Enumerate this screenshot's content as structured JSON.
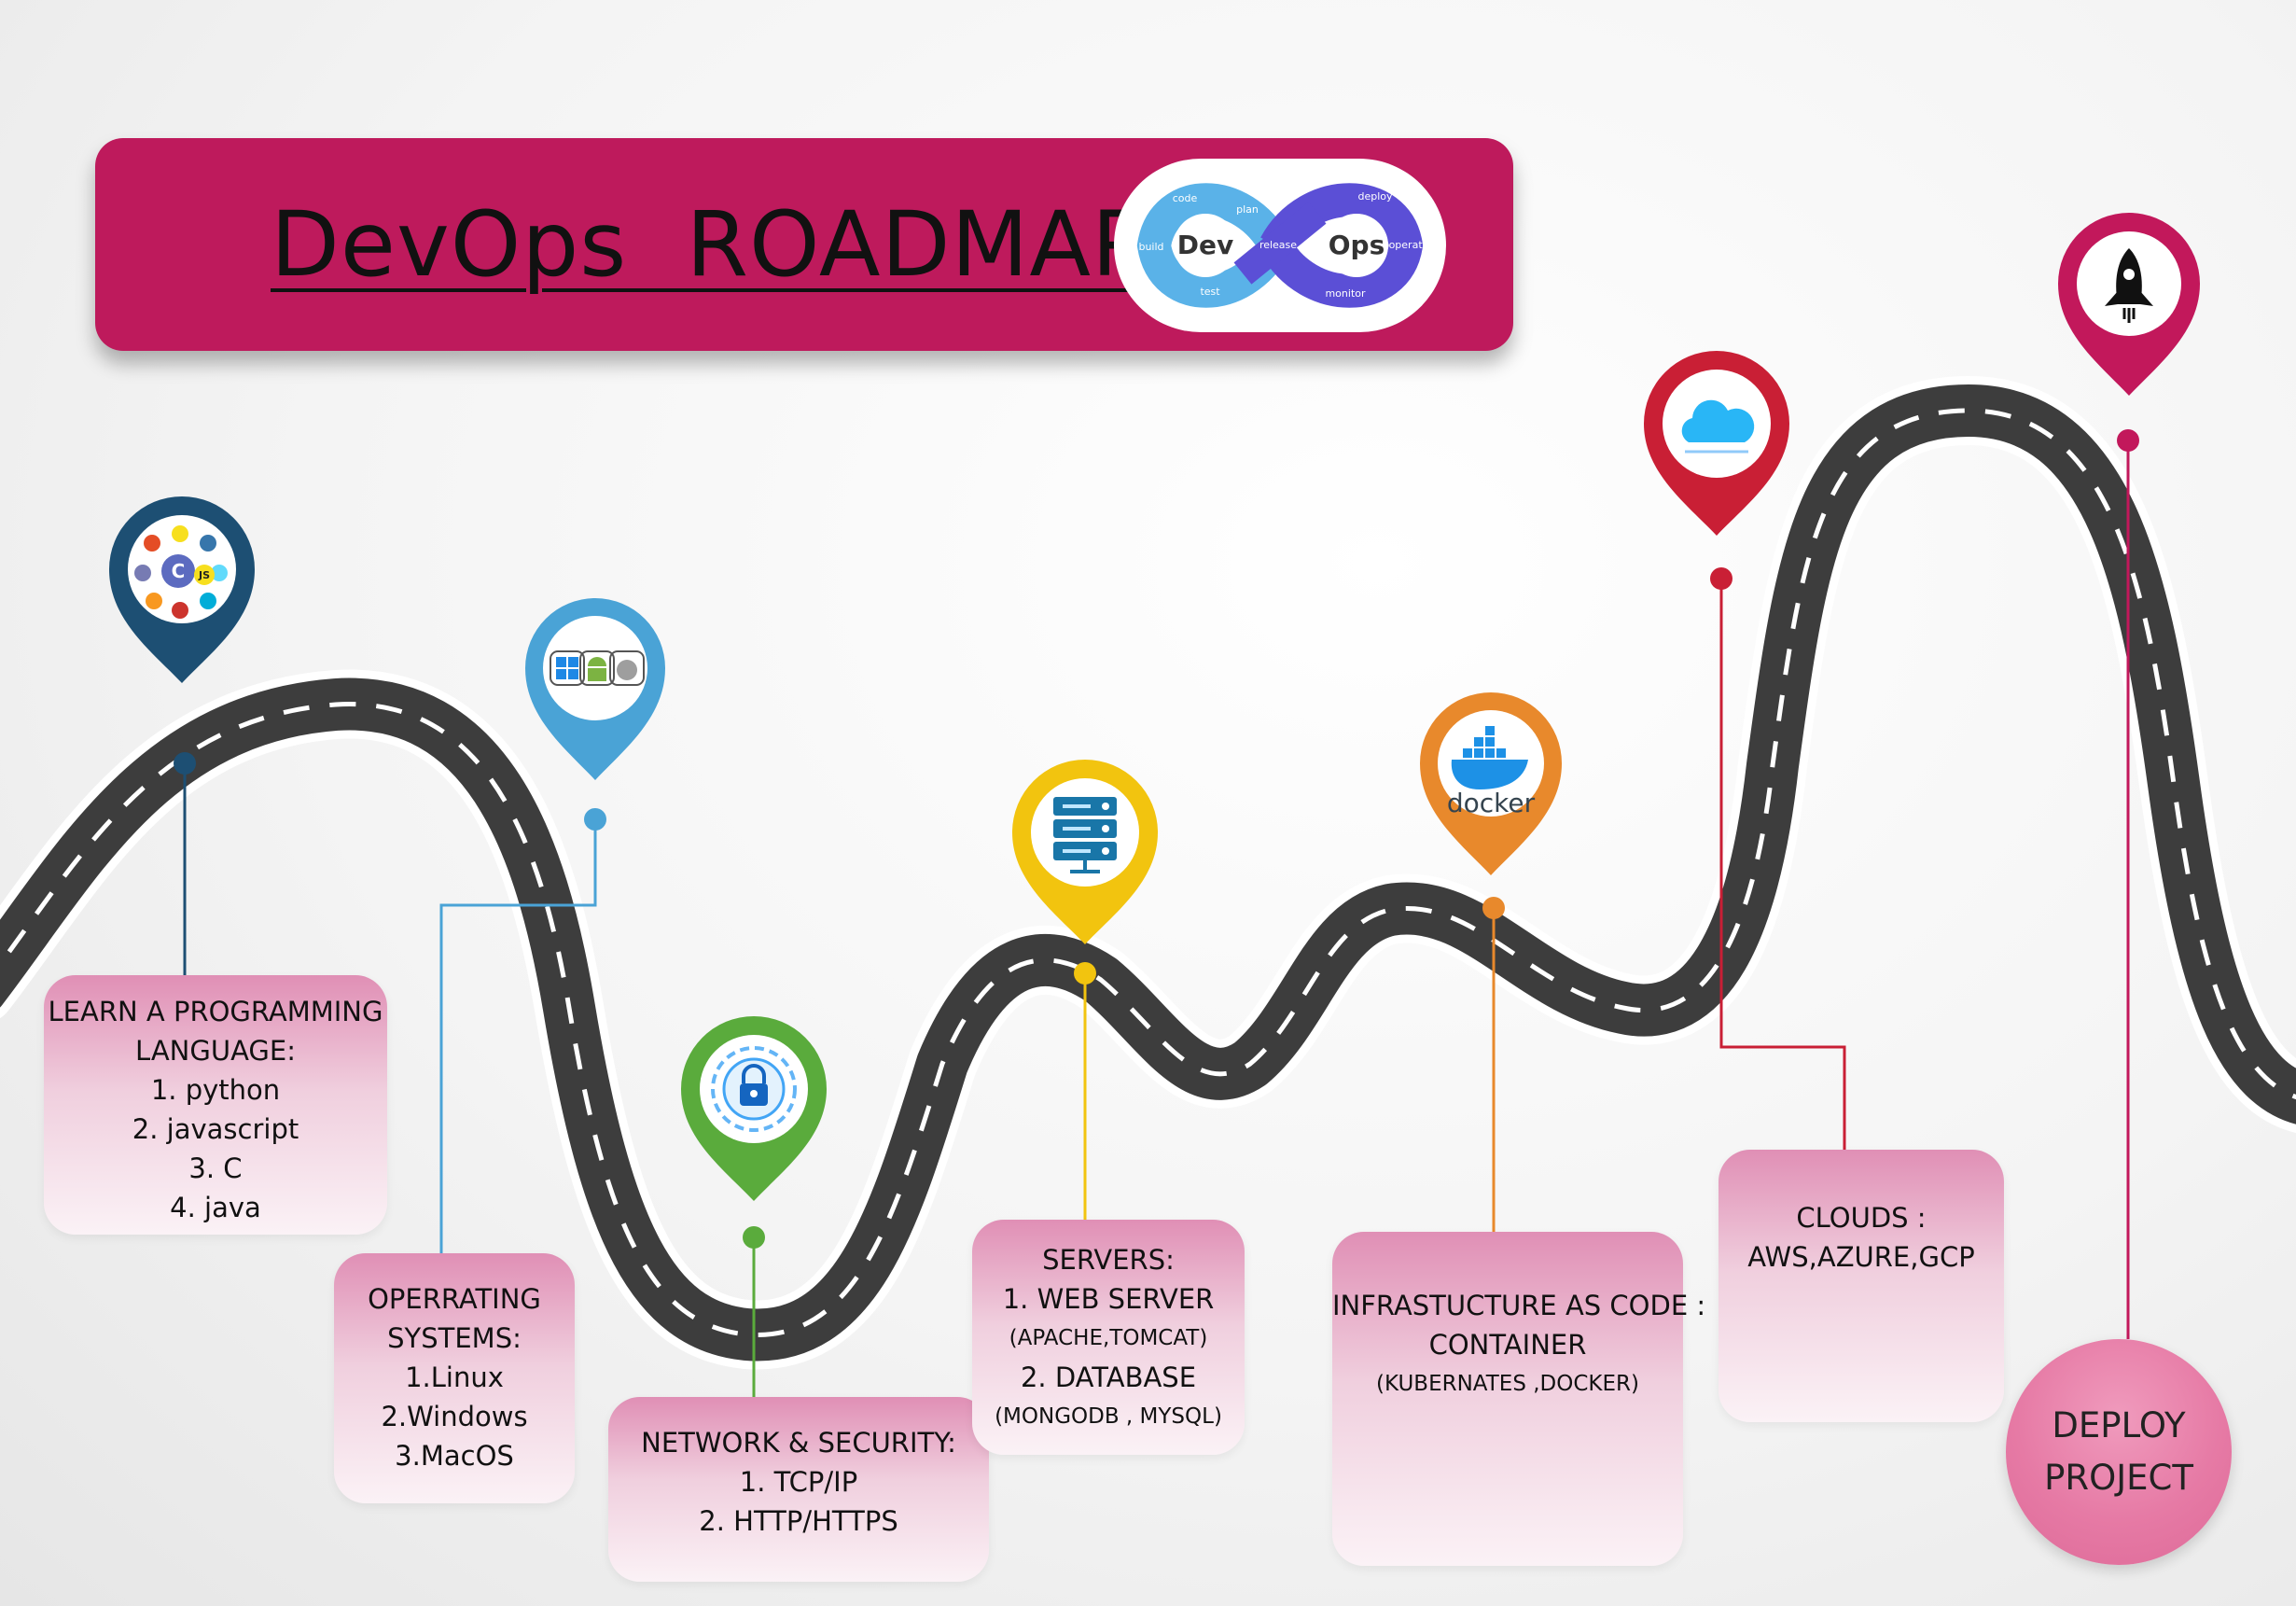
{
  "banner": {
    "title": "DevOps  ROADMAP",
    "color": "#be1a5c",
    "logo": {
      "left_text": "Dev",
      "right_text": "Ops",
      "labels": [
        "code",
        "plan",
        "release",
        "deploy",
        "operate",
        "monitor",
        "test",
        "build"
      ]
    }
  },
  "steps": {
    "programming": {
      "lines": [
        "LEARN A PROGRAMMING",
        "LANGUAGE:",
        "1. python",
        "2. javascript",
        "3. C",
        "4. java"
      ],
      "icon": "programming-languages-icon",
      "color": "#1d4f73"
    },
    "os": {
      "lines": [
        "OPERRATING",
        "SYSTEMS:",
        "1.Linux",
        "2.Windows",
        "3.MacOS"
      ],
      "icon": "operating-systems-icon",
      "color": "#4aa3d6"
    },
    "network": {
      "lines": [
        "NETWORK & SECURITY:",
        "1. TCP/IP",
        "2. HTTP/HTTPS"
      ],
      "icon": "security-lock-icon",
      "color": "#5aab3c"
    },
    "servers": {
      "lines": [
        "SERVERS:",
        "1. WEB SERVER",
        "(APACHE,TOMCAT)",
        "2. DATABASE",
        "(MONGODB , MYSQL)"
      ],
      "icon": "server-icon",
      "color": "#f2c40f"
    },
    "iac": {
      "lines": [
        "INFRASTUCTURE AS CODE :",
        "CONTAINER",
        "(KUBERNATES ,DOCKER)"
      ],
      "icon": "docker-icon",
      "icon_text": "docker",
      "color": "#e8892c"
    },
    "clouds": {
      "lines": [
        "CLOUDS :",
        "AWS,AZURE,GCP"
      ],
      "icon": "cloud-icon",
      "color": "#c91f35"
    },
    "deploy": {
      "lines": [
        "DEPLOY",
        "PROJECT"
      ],
      "icon": "rocket-icon",
      "color": "#c2185b"
    }
  }
}
